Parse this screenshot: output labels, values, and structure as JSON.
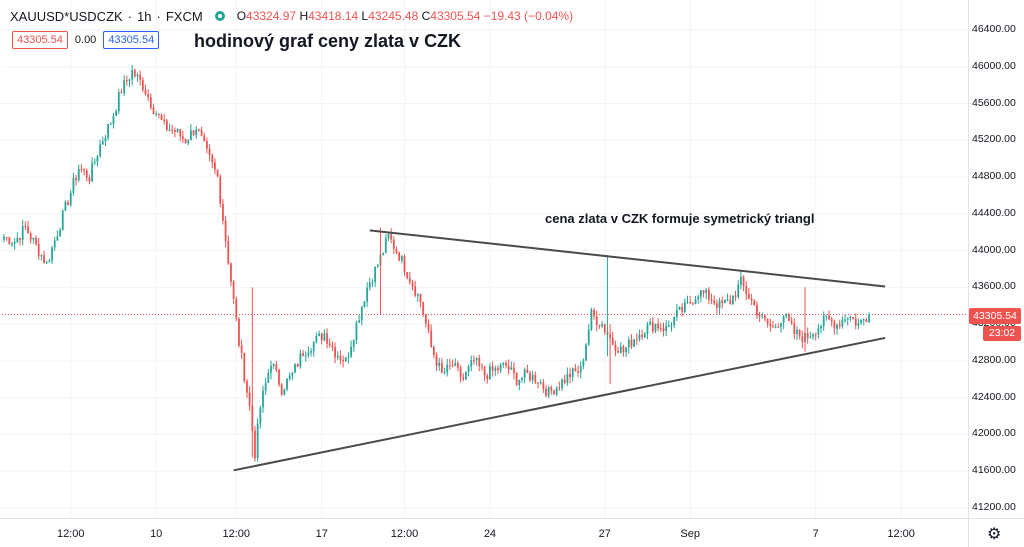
{
  "header": {
    "symbol": "XAUUSD*USDCZK",
    "interval": "1h",
    "exchange": "FXCM",
    "ohlc": {
      "o_key": "O",
      "o_val": "43324.97",
      "h_key": "H",
      "h_val": "43418.14",
      "l_key": "L",
      "l_val": "43245.48",
      "c_key": "C",
      "c_val": "43305.54",
      "change": "−19.43 (−0.04%)"
    }
  },
  "prices": {
    "bid": "43305.54",
    "spread": "0.00",
    "ask": "43305.54"
  },
  "chart_data": {
    "type": "candlestick",
    "title": "hodinový graf ceny zlata v CZK",
    "annotation": "cena zlata v CZK formuje symetrický triangl",
    "y_ticks": [
      "46400.00",
      "46000.00",
      "45600.00",
      "45200.00",
      "44800.00",
      "44400.00",
      "44000.00",
      "43600.00",
      "43200.00",
      "42800.00",
      "42400.00",
      "42000.00",
      "41600.00",
      "41200.00"
    ],
    "x_ticks": [
      "12:00",
      "10",
      "12:00",
      "17",
      "12:00",
      "24",
      "27",
      "Sep",
      "7",
      "12:00"
    ],
    "ylim": [
      41100,
      46600
    ],
    "last_price": "43305.54",
    "countdown": "23:02",
    "anchors": [
      {
        "t": 0,
        "p": 44150
      },
      {
        "t": 4,
        "p": 44100
      },
      {
        "t": 8,
        "p": 44250
      },
      {
        "t": 12,
        "p": 44050
      },
      {
        "t": 16,
        "p": 43850
      },
      {
        "t": 20,
        "p": 44200
      },
      {
        "t": 24,
        "p": 44550
      },
      {
        "t": 28,
        "p": 44900
      },
      {
        "t": 32,
        "p": 44800
      },
      {
        "t": 36,
        "p": 45150
      },
      {
        "t": 40,
        "p": 45400
      },
      {
        "t": 44,
        "p": 45750
      },
      {
        "t": 48,
        "p": 45950
      },
      {
        "t": 52,
        "p": 45800
      },
      {
        "t": 56,
        "p": 45550
      },
      {
        "t": 60,
        "p": 45350
      },
      {
        "t": 64,
        "p": 45300
      },
      {
        "t": 68,
        "p": 45200
      },
      {
        "t": 72,
        "p": 45350
      },
      {
        "t": 76,
        "p": 45050
      },
      {
        "t": 80,
        "p": 44800
      },
      {
        "t": 84,
        "p": 43900
      },
      {
        "t": 88,
        "p": 43000
      },
      {
        "t": 92,
        "p": 42300
      },
      {
        "t": 94,
        "p": 41800
      },
      {
        "t": 96,
        "p": 42300
      },
      {
        "t": 100,
        "p": 42800
      },
      {
        "t": 104,
        "p": 42500
      },
      {
        "t": 108,
        "p": 42650
      },
      {
        "t": 112,
        "p": 42900
      },
      {
        "t": 116,
        "p": 43000
      },
      {
        "t": 120,
        "p": 43100
      },
      {
        "t": 124,
        "p": 42900
      },
      {
        "t": 128,
        "p": 42800
      },
      {
        "t": 132,
        "p": 43200
      },
      {
        "t": 136,
        "p": 43600
      },
      {
        "t": 140,
        "p": 43850
      },
      {
        "t": 144,
        "p": 44150
      },
      {
        "t": 148,
        "p": 43950
      },
      {
        "t": 152,
        "p": 43700
      },
      {
        "t": 156,
        "p": 43450
      },
      {
        "t": 160,
        "p": 42950
      },
      {
        "t": 164,
        "p": 42650
      },
      {
        "t": 168,
        "p": 42750
      },
      {
        "t": 172,
        "p": 42600
      },
      {
        "t": 176,
        "p": 42800
      },
      {
        "t": 180,
        "p": 42650
      },
      {
        "t": 184,
        "p": 42700
      },
      {
        "t": 188,
        "p": 42750
      },
      {
        "t": 192,
        "p": 42600
      },
      {
        "t": 196,
        "p": 42650
      },
      {
        "t": 200,
        "p": 42600
      },
      {
        "t": 204,
        "p": 42450
      },
      {
        "t": 208,
        "p": 42550
      },
      {
        "t": 212,
        "p": 42650
      },
      {
        "t": 216,
        "p": 42700
      },
      {
        "t": 220,
        "p": 43300
      },
      {
        "t": 224,
        "p": 43200
      },
      {
        "t": 228,
        "p": 43000
      },
      {
        "t": 232,
        "p": 42900
      },
      {
        "t": 236,
        "p": 43050
      },
      {
        "t": 240,
        "p": 43150
      },
      {
        "t": 244,
        "p": 43200
      },
      {
        "t": 248,
        "p": 43150
      },
      {
        "t": 252,
        "p": 43300
      },
      {
        "t": 256,
        "p": 43400
      },
      {
        "t": 260,
        "p": 43550
      },
      {
        "t": 264,
        "p": 43500
      },
      {
        "t": 268,
        "p": 43400
      },
      {
        "t": 272,
        "p": 43450
      },
      {
        "t": 276,
        "p": 43650
      },
      {
        "t": 280,
        "p": 43450
      },
      {
        "t": 284,
        "p": 43250
      },
      {
        "t": 288,
        "p": 43150
      },
      {
        "t": 292,
        "p": 43300
      },
      {
        "t": 296,
        "p": 43100
      },
      {
        "t": 300,
        "p": 43050
      },
      {
        "t": 304,
        "p": 43150
      },
      {
        "t": 308,
        "p": 43250
      },
      {
        "t": 312,
        "p": 43200
      },
      {
        "t": 316,
        "p": 43300
      },
      {
        "t": 320,
        "p": 43200
      },
      {
        "t": 324,
        "p": 43305
      }
    ],
    "trendlines": [
      {
        "name": "upper",
        "from": {
          "t": 137,
          "p": 44220
        },
        "to": {
          "t": 330,
          "p": 43610
        }
      },
      {
        "name": "lower",
        "from": {
          "t": 86,
          "p": 41610
        },
        "to": {
          "t": 330,
          "p": 43050
        }
      }
    ],
    "colors": {
      "up": "#26a69a",
      "down": "#ef5350",
      "trendline": "#4a4a4a",
      "grid": "#f0f3fa"
    }
  }
}
